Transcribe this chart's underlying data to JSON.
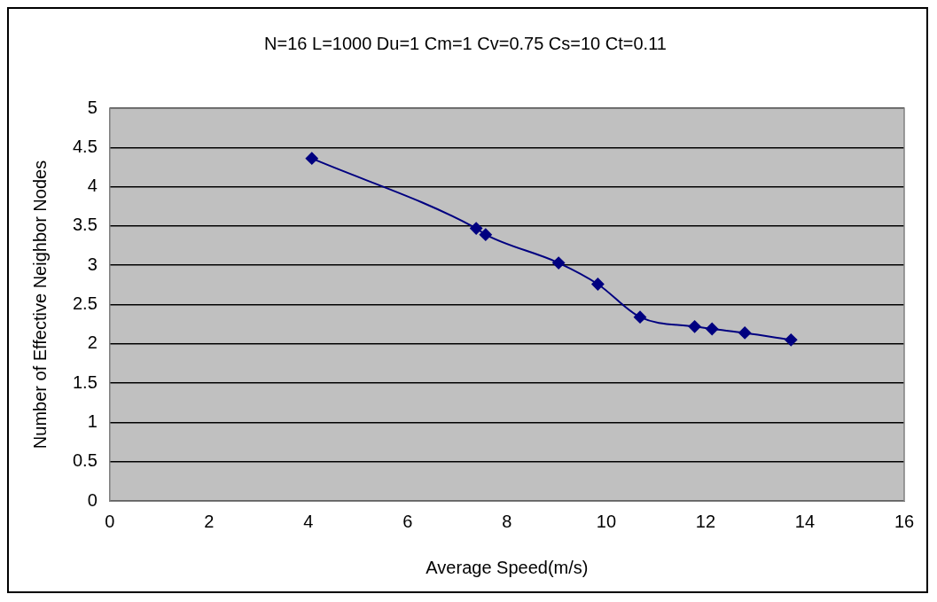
{
  "chart_data": {
    "type": "line",
    "title": "N=16 L=1000 Du=1 Cm=1 Cv=0.75 Cs=10 Ct=0.11",
    "xlabel": "Average Speed(m/s)",
    "ylabel": "Number of Effective Neighbor Nodes",
    "series": [
      {
        "color": "#000080",
        "x": [
          4.07,
          7.38,
          7.57,
          9.04,
          9.83,
          10.68,
          11.78,
          12.13,
          12.79,
          13.72
        ],
        "values": [
          4.36,
          3.47,
          3.39,
          3.03,
          2.76,
          2.34,
          2.22,
          2.19,
          2.14,
          2.05
        ]
      }
    ],
    "xlim": [
      0,
      16
    ],
    "xticks": [
      0,
      2,
      4,
      6,
      8,
      10,
      12,
      14,
      16
    ],
    "ylim": [
      0,
      5
    ],
    "yticks": [
      0,
      0.5,
      1,
      1.5,
      2,
      2.5,
      3,
      3.5,
      4,
      4.5,
      5
    ],
    "grid": "y",
    "legend": false,
    "marker": "diamond",
    "line_style": "solid"
  }
}
